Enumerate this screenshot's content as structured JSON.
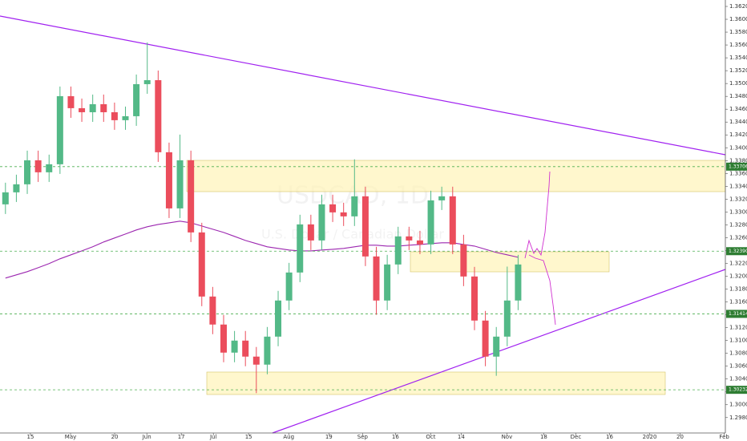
{
  "chart_data": {
    "type": "candlestick",
    "title": "USDCAD, 1D",
    "subtitle": "U.S. Dollar / Canadian Dollar",
    "open": [
      1.33119,
      1.33306,
      1.33431,
      1.33805,
      1.33618,
      1.33743,
      1.34803,
      1.34616,
      1.34553,
      1.34678,
      1.34553,
      1.34429,
      1.34491,
      1.3499,
      1.35052,
      1.3393,
      1.33056,
      1.33805,
      1.32682,
      1.31684,
      1.31248,
      1.30811,
      1.30998,
      1.30749,
      1.30624,
      1.3106,
      1.31622,
      1.32058,
      1.32807,
      1.32557,
      1.33119,
      1.32994,
      1.32932,
      1.33244,
      1.32308,
      1.31622,
      1.32183,
      1.3262,
      1.32557,
      1.32495,
      1.33181,
      1.33244,
      1.32495,
      1.31996,
      1.3131,
      1.30749,
      1.3106,
      1.31622
    ],
    "high": [
      1.33456,
      1.33581,
      1.33955,
      1.33955,
      1.33893,
      1.34953,
      1.34953,
      1.34766,
      1.34828,
      1.34828,
      1.34703,
      1.34641,
      1.3514,
      1.3564,
      1.35202,
      1.3408,
      1.34205,
      1.33955,
      1.32832,
      1.31834,
      1.31398,
      1.31148,
      1.31148,
      1.30899,
      1.3121,
      1.31772,
      1.32208,
      1.32957,
      1.32957,
      1.33269,
      1.33269,
      1.33144,
      1.3382,
      1.33394,
      1.32458,
      1.32333,
      1.3277,
      1.3277,
      1.32707,
      1.33331,
      1.33394,
      1.33394,
      1.32645,
      1.32146,
      1.3146,
      1.3121,
      1.3215,
      1.32333
    ],
    "low": [
      1.32969,
      1.33156,
      1.33281,
      1.33468,
      1.33468,
      1.33593,
      1.34466,
      1.34403,
      1.34403,
      1.34403,
      1.34279,
      1.34279,
      1.34341,
      1.3484,
      1.3378,
      1.32906,
      1.32906,
      1.32532,
      1.31534,
      1.31098,
      1.30661,
      1.30661,
      1.30599,
      1.3018,
      1.30474,
      1.3091,
      1.31472,
      1.31908,
      1.32407,
      1.32407,
      1.32844,
      1.32782,
      1.32782,
      1.32158,
      1.314,
      1.31472,
      1.32033,
      1.32407,
      1.32345,
      1.32345,
      1.33031,
      1.32345,
      1.31846,
      1.3116,
      1.30599,
      1.3045,
      1.3091,
      1.31472
    ],
    "close": [
      1.33306,
      1.33431,
      1.33805,
      1.33618,
      1.33743,
      1.34803,
      1.34616,
      1.34553,
      1.34678,
      1.34553,
      1.34429,
      1.34491,
      1.3499,
      1.35052,
      1.3393,
      1.33056,
      1.33805,
      1.32682,
      1.31684,
      1.31248,
      1.30811,
      1.30998,
      1.30749,
      1.30624,
      1.3106,
      1.31622,
      1.32058,
      1.32807,
      1.32557,
      1.33119,
      1.32994,
      1.32932,
      1.33244,
      1.32308,
      1.31622,
      1.32183,
      1.3262,
      1.32557,
      1.32495,
      1.33181,
      1.33244,
      1.32495,
      1.31996,
      1.3131,
      1.30749,
      1.3106,
      1.31622,
      1.32183
    ],
    "up_color": "#53b987",
    "down_color": "#eb4d5c",
    "ma_values": [
      1.31971,
      1.32021,
      1.32071,
      1.32133,
      1.32196,
      1.32271,
      1.32333,
      1.32395,
      1.32458,
      1.32533,
      1.32595,
      1.32657,
      1.3272,
      1.3277,
      1.32807,
      1.32832,
      1.32857,
      1.32832,
      1.32782,
      1.32732,
      1.32682,
      1.3262,
      1.32557,
      1.32508,
      1.32458,
      1.32433,
      1.32408,
      1.32395,
      1.32395,
      1.32408,
      1.3242,
      1.32433,
      1.32458,
      1.32483,
      1.32483,
      1.3247,
      1.3247,
      1.32483,
      1.32495,
      1.32508,
      1.3252,
      1.3252,
      1.32495,
      1.3247,
      1.3242,
      1.3237,
      1.32333,
      1.32295
    ],
    "ma_color": "#9c27b0",
    "price_levels": [
      1.33706,
      {
        "value": 1.3239,
        "label": "1.32390"
      },
      1.31414,
      1.30232
    ],
    "level_color": "#2e7d32",
    "ylim": [
      1.2956,
      1.363
    ],
    "yticks": [
      {
        "value": 1.362,
        "label": "1.36200"
      },
      {
        "value": 1.36,
        "label": "1.36000"
      },
      {
        "value": 1.358,
        "label": "1.35800"
      },
      {
        "value": 1.356,
        "label": "1.35600"
      },
      {
        "value": 1.354,
        "label": "1.35400"
      },
      {
        "value": 1.352,
        "label": "1.35200"
      },
      {
        "value": 1.35,
        "label": "1.35000"
      },
      {
        "value": 1.348,
        "label": "1.34800"
      },
      {
        "value": 1.346,
        "label": "1.34600"
      },
      {
        "value": 1.344,
        "label": "1.34400"
      },
      {
        "value": 1.342,
        "label": "1.34200"
      },
      {
        "value": 1.34,
        "label": "1.34000"
      },
      {
        "value": 1.338,
        "label": "1.33800"
      },
      {
        "value": 1.336,
        "label": "1.33600"
      },
      {
        "value": 1.334,
        "label": "1.33400"
      },
      {
        "value": 1.332,
        "label": "1.33200"
      },
      {
        "value": 1.33,
        "label": "1.33000"
      },
      {
        "value": 1.328,
        "label": "1.32800"
      },
      {
        "value": 1.326,
        "label": "1.32600"
      },
      {
        "value": 1.324,
        "label": "1.32400"
      },
      {
        "value": 1.322,
        "label": "1.32200"
      },
      {
        "value": 1.32,
        "label": "1.32000"
      },
      {
        "value": 1.318,
        "label": "1.31800"
      },
      {
        "value": 1.316,
        "label": "1.31600"
      },
      {
        "value": 1.314,
        "label": "1.31400"
      },
      {
        "value": 1.312,
        "label": "1.31200"
      },
      {
        "value": 1.31,
        "label": "1.31000"
      },
      {
        "value": 1.308,
        "label": "1.30800"
      },
      {
        "value": 1.306,
        "label": "1.30600"
      },
      {
        "value": 1.304,
        "label": "1.30400"
      },
      {
        "value": 1.302,
        "label": "1.30200"
      },
      {
        "value": 1.3,
        "label": "1.30000"
      },
      {
        "value": 1.298,
        "label": "1.29800"
      }
    ],
    "xlim": [
      -0.5,
      66
    ],
    "xticks": [
      {
        "value": 2.29,
        "label": "15"
      },
      {
        "value": 5.97,
        "label": "May"
      },
      {
        "value": 10.01,
        "label": "20"
      },
      {
        "value": 12.96,
        "label": "Jun"
      },
      {
        "value": 16.12,
        "label": "17"
      },
      {
        "value": 19.06,
        "label": "Jul"
      },
      {
        "value": 22.29,
        "label": "15"
      },
      {
        "value": 25.97,
        "label": "Aug"
      },
      {
        "value": 29.65,
        "label": "19"
      },
      {
        "value": 32.74,
        "label": "Sep"
      },
      {
        "value": 35.75,
        "label": "16"
      },
      {
        "value": 38.99,
        "label": "Oct"
      },
      {
        "value": 41.78,
        "label": "14"
      },
      {
        "value": 45.97,
        "label": "Nov"
      },
      {
        "value": 49.35,
        "label": "18"
      },
      {
        "value": 52.29,
        "label": "Dec"
      },
      {
        "value": 55.38,
        "label": "16"
      },
      {
        "value": 59.06,
        "label": "2020"
      },
      {
        "value": 61.85,
        "label": "20"
      },
      {
        "value": 65.9,
        "label": "Feb"
      }
    ]
  }
}
